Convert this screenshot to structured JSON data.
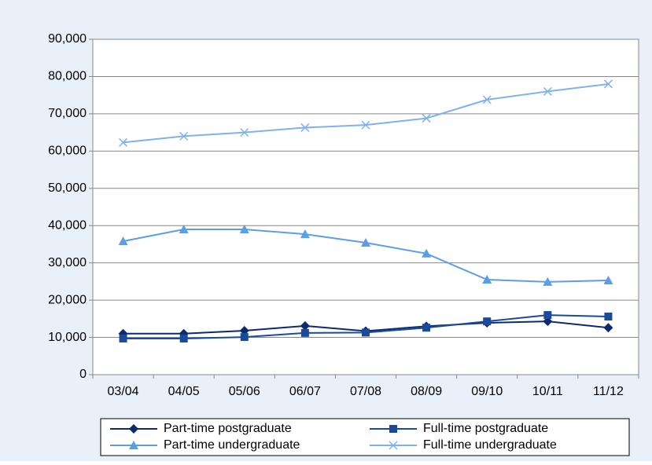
{
  "chart_data": {
    "type": "line",
    "categories": [
      "03/04",
      "04/05",
      "05/06",
      "06/07",
      "07/08",
      "08/09",
      "09/10",
      "10/11",
      "11/12"
    ],
    "series": [
      {
        "name": "Part-time postgraduate",
        "color": "#0d2a6e",
        "marker": "diamond",
        "values": [
          11000,
          11000,
          11800,
          13100,
          11700,
          13000,
          13900,
          14300,
          12600
        ]
      },
      {
        "name": "Full-time postgraduate",
        "color": "#1a4b9b",
        "marker": "square",
        "values": [
          9700,
          9700,
          10100,
          11200,
          11300,
          12600,
          14300,
          16000,
          15600
        ]
      },
      {
        "name": "Part-time undergraduate",
        "color": "#5b9ee6",
        "marker": "triangle",
        "values": [
          35800,
          39000,
          39000,
          37700,
          35400,
          32500,
          25500,
          24900,
          25300
        ]
      },
      {
        "name": "Full-time undergraduate",
        "color": "#7fb2ec",
        "marker": "x",
        "values": [
          62300,
          64000,
          65000,
          66300,
          67000,
          68800,
          73800,
          76000,
          78000
        ]
      }
    ],
    "ylim": [
      0,
      90000
    ],
    "yticks": [
      0,
      {
        "value": 10000,
        "label": "10,000"
      },
      {
        "value": 20000,
        "label": "20,000"
      },
      {
        "value": 30000,
        "label": "30,000"
      },
      {
        "value": 40000,
        "label": "40,000"
      },
      {
        "value": 50000,
        "label": "50,000"
      },
      {
        "value": 60000,
        "label": "60,000"
      },
      {
        "value": 70000,
        "label": "70,000"
      },
      {
        "value": 80000,
        "label": "80,000"
      },
      {
        "value": 90000,
        "label": "90,000"
      }
    ],
    "grid": true,
    "legend": "bottom"
  }
}
